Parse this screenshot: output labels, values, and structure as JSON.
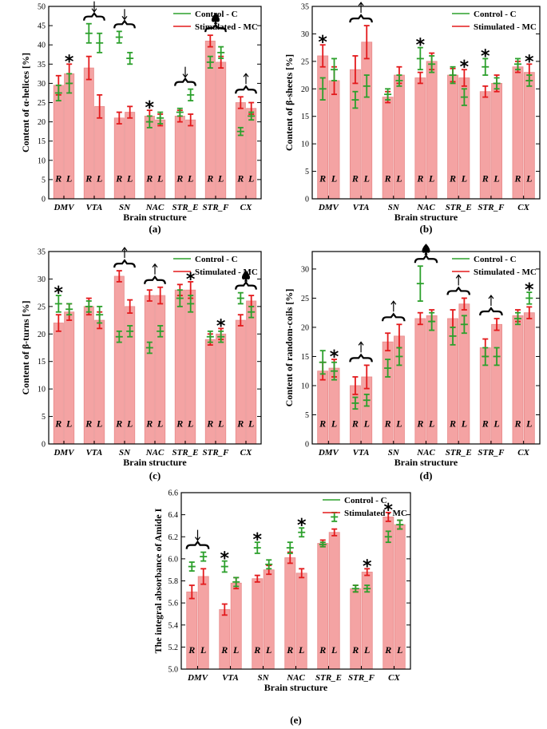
{
  "chart_data": [
    {
      "type": "bar",
      "panel_label": "(a)",
      "ylabel": "Content of α-helices [%]",
      "xlabel": "Brain structure",
      "ylim": [
        0,
        50
      ],
      "yticks": [
        0,
        5,
        10,
        15,
        20,
        25,
        30,
        35,
        40,
        45,
        50
      ],
      "categories": [
        "DMV",
        "VTA",
        "SN",
        "NAC",
        "STR_E",
        "STR_F",
        "CX"
      ],
      "sides": [
        "R",
        "L"
      ],
      "legend": [
        "Control - C",
        "Stimulated - MC"
      ],
      "series": [
        {
          "name": "Stimulated - MC",
          "values": [
            [
              29.5,
              32.5
            ],
            [
              34,
              24
            ],
            [
              21,
              22.5
            ],
            [
              21.5,
              20.5
            ],
            [
              21.5,
              20.5
            ],
            [
              41,
              35.5
            ],
            [
              25,
              23.5
            ]
          ],
          "err": [
            [
              2.5,
              2.5
            ],
            [
              3,
              3
            ],
            [
              1.5,
              1.5
            ],
            [
              1.5,
              1.5
            ],
            [
              1.5,
              1.5
            ],
            [
              1.5,
              1.5
            ],
            [
              1.5,
              1.5
            ]
          ]
        },
        {
          "name": "Control - C",
          "values": [
            [
              27.5,
              30
            ],
            [
              43,
              40.5
            ],
            [
              42,
              36.5
            ],
            [
              20,
              21
            ],
            [
              22.5,
              27
            ],
            [
              35.5,
              38
            ],
            [
              17.5,
              21.5
            ]
          ],
          "err": [
            [
              2,
              2.5
            ],
            [
              2.5,
              2.5
            ],
            [
              1.5,
              1.5
            ],
            [
              1.5,
              1.5
            ],
            [
              1,
              1.5
            ],
            [
              1.5,
              1.5
            ],
            [
              1,
              1
            ]
          ]
        }
      ],
      "annotations": [
        {
          "cat": 0,
          "side": 1,
          "mark": "*"
        },
        {
          "cat": 1,
          "mark": "down"
        },
        {
          "cat": 2,
          "mark": "down"
        },
        {
          "cat": 3,
          "side": 0,
          "mark": "*"
        },
        {
          "cat": 4,
          "mark": "down"
        },
        {
          "cat": 5,
          "mark": "spade"
        },
        {
          "cat": 6,
          "mark": "up"
        }
      ]
    },
    {
      "type": "bar",
      "panel_label": "(b)",
      "ylabel": "Content of β-sheets [%]",
      "xlabel": "Brain structure",
      "ylim": [
        0,
        35
      ],
      "yticks": [
        0,
        5,
        10,
        15,
        20,
        25,
        30,
        35
      ],
      "categories": [
        "DMV",
        "VTA",
        "SN",
        "NAC",
        "STR_E",
        "STR_F",
        "CX"
      ],
      "sides": [
        "R",
        "L"
      ],
      "legend": [
        "Control - C",
        "Stimulated - MC"
      ],
      "series": [
        {
          "name": "Stimulated - MC",
          "values": [
            [
              26,
              21.5
            ],
            [
              23.5,
              28.5
            ],
            [
              18.5,
              22.5
            ],
            [
              22,
              25
            ],
            [
              22.5,
              22
            ],
            [
              19.5,
              21
            ],
            [
              24,
              23
            ]
          ],
          "err": [
            [
              2,
              2.5
            ],
            [
              2.5,
              3
            ],
            [
              1,
              1.5
            ],
            [
              1,
              1.5
            ],
            [
              1.2,
              1.5
            ],
            [
              1,
              1.5
            ],
            [
              1,
              1.5
            ]
          ]
        },
        {
          "name": "Control - C",
          "values": [
            [
              20,
              23.5
            ],
            [
              18,
              20.5
            ],
            [
              19,
              21.5
            ],
            [
              25.5,
              24.5
            ],
            [
              22.5,
              18.5
            ],
            [
              24,
              21
            ],
            [
              24.5,
              21.5
            ]
          ],
          "err": [
            [
              2,
              2
            ],
            [
              1.5,
              2
            ],
            [
              1,
              1
            ],
            [
              2,
              1.5
            ],
            [
              1.5,
              1.5
            ],
            [
              1.5,
              1
            ],
            [
              1,
              1
            ]
          ]
        }
      ],
      "annotations": [
        {
          "cat": 0,
          "side": 0,
          "mark": "*"
        },
        {
          "cat": 1,
          "mark": "up"
        },
        {
          "cat": 3,
          "side": 0,
          "mark": "*"
        },
        {
          "cat": 4,
          "side": 1,
          "mark": "*"
        },
        {
          "cat": 5,
          "side": 0,
          "mark": "*"
        },
        {
          "cat": 6,
          "side": 1,
          "mark": "*"
        }
      ]
    },
    {
      "type": "bar",
      "panel_label": "(c)",
      "ylabel": "Content of β-turns [%]",
      "xlabel": "Brain structure",
      "ylim": [
        0,
        35
      ],
      "yticks": [
        0,
        5,
        10,
        15,
        20,
        25,
        30,
        35
      ],
      "categories": [
        "DMV",
        "VTA",
        "SN",
        "NAC",
        "STR_E",
        "STR_F",
        "CX"
      ],
      "sides": [
        "R",
        "L"
      ],
      "legend": [
        "Control - C",
        "Stimulated - MC"
      ],
      "series": [
        {
          "name": "Stimulated - MC",
          "values": [
            [
              22,
              24
            ],
            [
              25,
              22.5
            ],
            [
              30.5,
              25
            ],
            [
              27,
              27
            ],
            [
              28,
              28
            ],
            [
              19,
              20
            ],
            [
              22.5,
              26
            ]
          ],
          "err": [
            [
              1.5,
              1.5
            ],
            [
              1.5,
              1.5
            ],
            [
              1,
              1.2
            ],
            [
              1,
              1.5
            ],
            [
              1,
              1.5
            ],
            [
              1,
              1
            ],
            [
              1,
              1
            ]
          ]
        },
        {
          "name": "Control - C",
          "values": [
            [
              25.5,
              24.5
            ],
            [
              25,
              23.5
            ],
            [
              19.5,
              20.5
            ],
            [
              17.5,
              20.5
            ],
            [
              26.5,
              25.5
            ],
            [
              19.5,
              19.5
            ],
            [
              26.5,
              24
            ]
          ],
          "err": [
            [
              1.5,
              1
            ],
            [
              1,
              1.5
            ],
            [
              1,
              1
            ],
            [
              1,
              1
            ],
            [
              1.5,
              1.5
            ],
            [
              1,
              1
            ],
            [
              1,
              1
            ]
          ]
        }
      ],
      "annotations": [
        {
          "cat": 0,
          "side": 0,
          "mark": "*"
        },
        {
          "cat": 2,
          "mark": "up"
        },
        {
          "cat": 3,
          "mark": "up"
        },
        {
          "cat": 4,
          "side": 1,
          "mark": "*"
        },
        {
          "cat": 5,
          "side": 1,
          "mark": "*"
        },
        {
          "cat": 6,
          "mark": "spade"
        }
      ]
    },
    {
      "type": "bar",
      "panel_label": "(d)",
      "ylabel": "Content of random-coils [%]",
      "xlabel": "Brain structure",
      "ylim": [
        0,
        33
      ],
      "yticks": [
        0,
        5,
        10,
        15,
        20,
        25,
        30
      ],
      "categories": [
        "DMV",
        "VTA",
        "SN",
        "NAC",
        "STR_E",
        "STR_F",
        "CX"
      ],
      "sides": [
        "R",
        "L"
      ],
      "legend": [
        "Control - C",
        "Stimulated - MC"
      ],
      "series": [
        {
          "name": "Stimulated - MC",
          "values": [
            [
              12.5,
              13
            ],
            [
              10,
              11.5
            ],
            [
              17.5,
              18.5
            ],
            [
              21.5,
              22
            ],
            [
              21.5,
              24
            ],
            [
              16.5,
              20.5
            ],
            [
              22,
              22.5
            ]
          ],
          "err": [
            [
              1.5,
              1.5
            ],
            [
              1.5,
              2
            ],
            [
              1.5,
              2
            ],
            [
              1,
              1
            ],
            [
              1.5,
              1
            ],
            [
              1.5,
              1
            ],
            [
              1,
              1
            ]
          ]
        },
        {
          "name": "Control - C",
          "values": [
            [
              14,
              12.5
            ],
            [
              7,
              7.5
            ],
            [
              13,
              15
            ],
            [
              27.5,
              21
            ],
            [
              18.5,
              20.5
            ],
            [
              15,
              15
            ],
            [
              21.5,
              25
            ]
          ],
          "err": [
            [
              2,
              1.5
            ],
            [
              1,
              1
            ],
            [
              1.5,
              1.5
            ],
            [
              3,
              1.5
            ],
            [
              1.5,
              1.5
            ],
            [
              1.5,
              1.5
            ],
            [
              1,
              1
            ]
          ]
        }
      ],
      "annotations": [
        {
          "cat": 0,
          "side": 1,
          "mark": "*"
        },
        {
          "cat": 1,
          "mark": "up"
        },
        {
          "cat": 2,
          "mark": "up"
        },
        {
          "cat": 3,
          "mark": "spade"
        },
        {
          "cat": 4,
          "mark": "up"
        },
        {
          "cat": 5,
          "mark": "up"
        },
        {
          "cat": 6,
          "side": 1,
          "mark": "*"
        }
      ]
    },
    {
      "type": "bar",
      "panel_label": "(e)",
      "ylabel": "The integral absorbance of Amide I",
      "xlabel": "Brain structure",
      "ylim": [
        5.0,
        6.6
      ],
      "yticks": [
        5.0,
        5.2,
        5.4,
        5.6,
        5.8,
        6.0,
        6.2,
        6.4,
        6.6
      ],
      "ytick_labels": [
        "5.0",
        "5.2",
        "5.4",
        "5.6",
        "5.8",
        "6.0",
        "6.2",
        "6.4",
        "6.6"
      ],
      "categories": [
        "DMV",
        "VTA",
        "SN",
        "NAC",
        "STR_E",
        "STR_F",
        "CX"
      ],
      "sides": [
        "R",
        "L"
      ],
      "legend": [
        "Control - C",
        "Stimulated - MC"
      ],
      "series": [
        {
          "name": "Stimulated - MC",
          "values": [
            [
              5.7,
              5.84
            ],
            [
              5.54,
              5.78
            ],
            [
              5.82,
              5.9
            ],
            [
              6.01,
              5.87
            ],
            [
              6.14,
              6.24
            ],
            [
              5.73,
              5.88
            ],
            [
              6.38,
              6.31
            ]
          ],
          "err": [
            [
              0.06,
              0.07
            ],
            [
              0.05,
              0.05
            ],
            [
              0.03,
              0.04
            ],
            [
              0.05,
              0.04
            ],
            [
              0.03,
              0.03
            ],
            [
              0.03,
              0.03
            ],
            [
              0.04,
              0.04
            ]
          ]
        },
        {
          "name": "Control - C",
          "values": [
            [
              5.93,
              6.02
            ],
            [
              5.93,
              5.79
            ],
            [
              6.1,
              5.95
            ],
            [
              6.1,
              6.24
            ],
            [
              6.13,
              6.38
            ],
            [
              5.73,
              5.73
            ],
            [
              6.2,
              6.31
            ]
          ],
          "err": [
            [
              0.04,
              0.04
            ],
            [
              0.05,
              0.04
            ],
            [
              0.05,
              0.04
            ],
            [
              0.05,
              0.04
            ],
            [
              0.02,
              0.04
            ],
            [
              0.03,
              0.03
            ],
            [
              0.05,
              0.04
            ]
          ]
        }
      ],
      "annotations": [
        {
          "cat": 0,
          "mark": "down"
        },
        {
          "cat": 1,
          "side": 0,
          "mark": "*"
        },
        {
          "cat": 2,
          "side": 0,
          "mark": "*"
        },
        {
          "cat": 3,
          "side": 1,
          "mark": "*"
        },
        {
          "cat": 5,
          "side": 1,
          "mark": "*"
        },
        {
          "cat": 6,
          "side": 0,
          "mark": "*"
        }
      ]
    }
  ],
  "colors": {
    "bar": "#f4a3a3",
    "bar_edge": "#e88a8a",
    "control": "#2ca02c",
    "stimulated": "#e31a1c"
  }
}
